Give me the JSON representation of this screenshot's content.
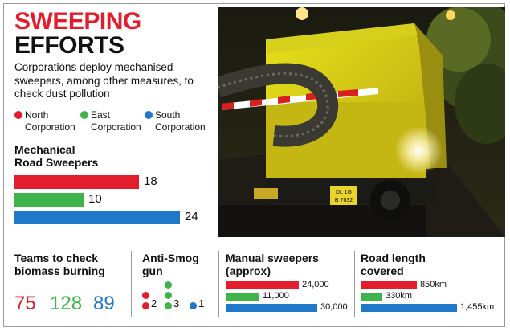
{
  "title_line1": "SWEEPING",
  "title_line2": "EFFORTS",
  "intro": "Corporations deploy mechanised sweepers, among other measures, to check dust pollution",
  "colors": {
    "north": "#e31d2d",
    "east": "#3fb44a",
    "south": "#1f78c8"
  },
  "legend": [
    {
      "key": "north",
      "line1": "North",
      "line2": "Corporation"
    },
    {
      "key": "east",
      "line1": "East",
      "line2": "Corporation"
    },
    {
      "key": "south",
      "line1": "South",
      "line2": "Corporation"
    }
  ],
  "chart_data": [
    {
      "type": "bar",
      "title": "Mechanical Road Sweepers",
      "categories": [
        "North Corporation",
        "East Corporation",
        "South Corporation"
      ],
      "values": [
        18,
        10,
        24
      ],
      "value_labels": [
        "18",
        "10",
        "24"
      ]
    },
    {
      "type": "table",
      "title": "Teams to check biomass burning",
      "categories": [
        "North Corporation",
        "East Corporation",
        "South Corporation"
      ],
      "values": [
        75,
        128,
        89
      ]
    },
    {
      "type": "bar",
      "title": "Anti-Smog gun",
      "categories": [
        "North Corporation",
        "East Corporation",
        "South Corporation"
      ],
      "values": [
        2,
        3,
        1
      ]
    },
    {
      "type": "bar",
      "title": "Manual sweepers (approx)",
      "categories": [
        "North Corporation",
        "East Corporation",
        "South Corporation"
      ],
      "values": [
        24000,
        11000,
        30000
      ],
      "value_labels": [
        "24,000",
        "11,000",
        "30,000"
      ]
    },
    {
      "type": "bar",
      "title": "Road length covered",
      "categories": [
        "North Corporation",
        "East Corporation",
        "South Corporation"
      ],
      "values": [
        850,
        330,
        1455
      ],
      "value_labels": [
        "850km",
        "330km",
        "1,455km"
      ]
    }
  ],
  "sections": {
    "mech_line1": "Mechanical",
    "mech_line2": "Road Sweepers",
    "teams_line1": "Teams to check",
    "teams_line2": "biomass burning",
    "smog_line1": "Anti-Smog",
    "smog_line2": "gun",
    "manual_line1": "Manual sweepers",
    "manual_line2": "(approx)",
    "road_line1": "Road length",
    "road_line2": "covered"
  },
  "photo": {
    "plate_line1": "DL 1G",
    "plate_line2": "B 7632"
  }
}
